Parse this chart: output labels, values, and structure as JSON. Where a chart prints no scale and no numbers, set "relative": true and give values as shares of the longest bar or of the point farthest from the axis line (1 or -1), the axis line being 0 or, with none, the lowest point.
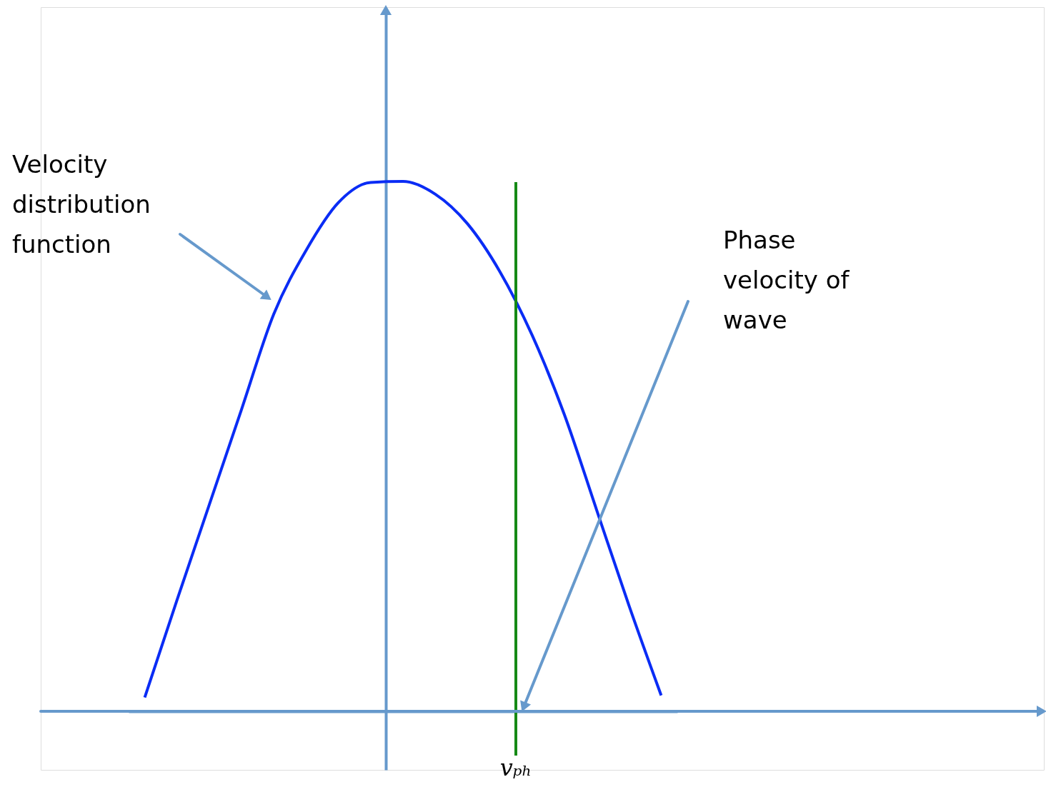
{
  "chart_data": {
    "type": "line",
    "relative": true,
    "categories": [
      null,
      null,
      null,
      null,
      null,
      null,
      null,
      null,
      null,
      null,
      null,
      null,
      null,
      null,
      null,
      null,
      null
    ],
    "series": [
      {
        "color": "#0a2cf5",
        "values": [
          0.026,
          0.21,
          0.39,
          0.57,
          0.75,
          0.87,
          0.96,
          0.998,
          1,
          0.976,
          0.92,
          0.83,
          0.71,
          0.56,
          0.38,
          0.2,
          0.03
        ]
      }
    ],
    "ref_lines": [
      {
        "axis": "x",
        "label": "vₚₕ",
        "color": "#168a16"
      }
    ],
    "annotations": [
      "Velocity distribution function",
      "Phase velocity of wave"
    ]
  }
}
